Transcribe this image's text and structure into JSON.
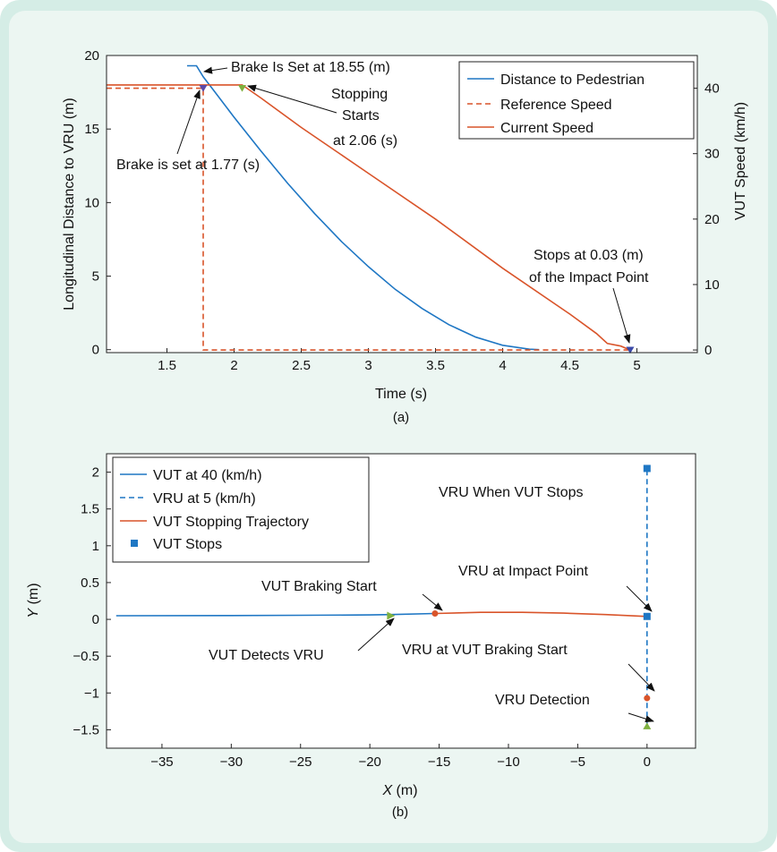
{
  "chart_data": [
    {
      "panel": "a",
      "type": "line",
      "caption": "(a)",
      "xlabel": "Time (s)",
      "ylabel_left": "Longitudinal Distance to VRU (m)",
      "ylabel_right": "VUT Speed (km/h)",
      "xlim": [
        1.05,
        5.45
      ],
      "ylim_left": [
        -0.2,
        20
      ],
      "ylim_right": [
        -0.4,
        45
      ],
      "xticks": [
        1.5,
        2,
        2.5,
        3,
        3.5,
        4,
        4.5,
        5
      ],
      "yticks_left": [
        0,
        5,
        10,
        15,
        20
      ],
      "yticks_right": [
        0,
        10,
        20,
        30,
        40
      ],
      "grid": false,
      "legend_position": "top-right",
      "series": [
        {
          "name": "Distance to Pedestrian",
          "axis": "left",
          "color": "#1f77c4",
          "style": "solid",
          "x": [
            1.65,
            1.72,
            1.77,
            1.85,
            2.0,
            2.2,
            2.4,
            2.6,
            2.8,
            3.0,
            3.2,
            3.4,
            3.6,
            3.8,
            4.0,
            4.2,
            4.27
          ],
          "y": [
            19.3,
            19.3,
            18.55,
            17.6,
            15.8,
            13.5,
            11.3,
            9.25,
            7.35,
            5.65,
            4.1,
            2.8,
            1.7,
            0.85,
            0.3,
            0.03,
            0.0
          ]
        },
        {
          "name": "Reference Speed",
          "axis": "right",
          "color": "#d9542a",
          "style": "dashed",
          "x": [
            1.05,
            1.77,
            1.77,
            4.95
          ],
          "y": [
            40,
            40,
            0,
            0
          ]
        },
        {
          "name": "Current Speed",
          "axis": "right",
          "color": "#d9542a",
          "style": "solid",
          "x": [
            1.05,
            1.77,
            2.06,
            2.2,
            2.5,
            3.0,
            3.5,
            4.0,
            4.5,
            4.7,
            4.78,
            4.88,
            4.95
          ],
          "y": [
            40.5,
            40.5,
            40.5,
            38.5,
            34.0,
            27.0,
            20.0,
            12.5,
            5.5,
            2.5,
            1.0,
            0.6,
            0.0
          ]
        }
      ],
      "markers": [
        {
          "x": 1.77,
          "y": 40,
          "axis": "right",
          "color": "#5a4aa8",
          "shape": "triangle"
        },
        {
          "x": 2.06,
          "y": 40,
          "axis": "right",
          "color": "#7fb13f",
          "shape": "triangle"
        },
        {
          "x": 4.95,
          "y": 0,
          "axis": "right",
          "color": "#3b49a8",
          "shape": "triangle"
        }
      ],
      "annotations": [
        {
          "text": "Brake Is Set at 18.55 (m)"
        },
        {
          "text": "Stopping"
        },
        {
          "text": "Starts"
        },
        {
          "text": "at 2.06 (s)"
        },
        {
          "text": "Brake is set at 1.77 (s)"
        },
        {
          "text": "Stops at 0.03 (m)"
        },
        {
          "text": "of the Impact Point"
        }
      ]
    },
    {
      "panel": "b",
      "type": "line",
      "caption": "(b)",
      "xlabel_var": "X",
      "xlabel_unit": " (m)",
      "ylabel_var": "Y",
      "ylabel_unit": " (m)",
      "xlim": [
        -39,
        3.5
      ],
      "ylim": [
        -1.75,
        2.25
      ],
      "xticks": [
        -35,
        -30,
        -25,
        -20,
        -15,
        -10,
        -5,
        0
      ],
      "xtick_labels": [
        "−35",
        "−30",
        "−25",
        "−20",
        "−15",
        "−10",
        "−5",
        "0"
      ],
      "yticks": [
        -1.5,
        -1,
        -0.5,
        0,
        0.5,
        1,
        1.5,
        2
      ],
      "ytick_labels": [
        "−1.5",
        "−1",
        "−0.5",
        "0",
        "0.5",
        "1",
        "1.5",
        "2"
      ],
      "grid": false,
      "legend_position": "top-left",
      "series": [
        {
          "name": "VUT at 40 (km/h)",
          "color": "#1f77c4",
          "style": "solid",
          "x": [
            -38.3,
            -30,
            -25,
            -20,
            -18.5,
            -15.3
          ],
          "y": [
            0.05,
            0.052,
            0.055,
            0.06,
            0.065,
            0.08
          ]
        },
        {
          "name": "VRU at 5 (km/h)",
          "color": "#1f77c4",
          "style": "dashed",
          "x": [
            0,
            0
          ],
          "y": [
            -1.45,
            2.05
          ]
        },
        {
          "name": "VUT Stopping Trajectory",
          "color": "#d9542a",
          "style": "solid",
          "x": [
            -15.3,
            -12,
            -9,
            -6,
            -3,
            0
          ],
          "y": [
            0.08,
            0.095,
            0.095,
            0.085,
            0.065,
            0.04
          ]
        }
      ],
      "points": [
        {
          "name": "VUT Stops",
          "x": 0,
          "y": 2.05,
          "color": "#1f77c4",
          "shape": "square"
        },
        {
          "x": 0,
          "y": 0.04,
          "color": "#1f77c4",
          "shape": "square"
        },
        {
          "x": -18.5,
          "y": 0.05,
          "color": "#7fb13f",
          "shape": "triangle"
        },
        {
          "x": -15.3,
          "y": 0.08,
          "color": "#d9542a",
          "shape": "dot"
        },
        {
          "x": 0,
          "y": -1.07,
          "color": "#d9542a",
          "shape": "dot"
        },
        {
          "x": 0,
          "y": -1.45,
          "color": "#7fb13f",
          "shape": "triangle"
        }
      ],
      "annotations": [
        {
          "text": "VRU When VUT Stops"
        },
        {
          "text": "VRU at Impact Point"
        },
        {
          "text": "VUT Braking Start"
        },
        {
          "text": "VUT Detects VRU"
        },
        {
          "text": "VRU at VUT Braking Start"
        },
        {
          "text": "VRU Detection"
        }
      ]
    }
  ]
}
